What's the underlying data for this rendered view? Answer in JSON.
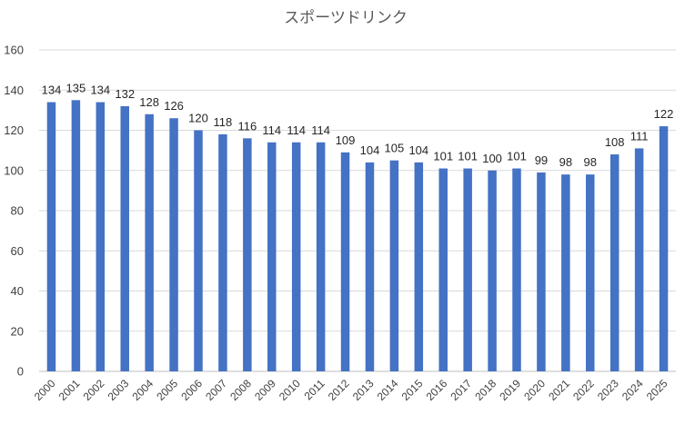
{
  "chart_data": {
    "type": "bar",
    "title": "スポーツドリンク",
    "xlabel": "",
    "ylabel": "",
    "ylim": [
      0,
      160
    ],
    "yticks": [
      0,
      20,
      40,
      60,
      80,
      100,
      120,
      140,
      160
    ],
    "grid": true,
    "legend": "none",
    "categories": [
      "2000",
      "2001",
      "2002",
      "2003",
      "2004",
      "2005",
      "2006",
      "2007",
      "2008",
      "2009",
      "2010",
      "2011",
      "2012",
      "2013",
      "2014",
      "2015",
      "2016",
      "2017",
      "2018",
      "2019",
      "2020",
      "2021",
      "2022",
      "2023",
      "2024",
      "2025"
    ],
    "values": [
      134,
      135,
      134,
      132,
      128,
      126,
      120,
      118,
      116,
      114,
      114,
      114,
      109,
      104,
      105,
      104,
      101,
      101,
      100,
      101,
      99,
      98,
      98,
      108,
      111,
      122
    ],
    "colors": {
      "bar": "#4472c4"
    }
  }
}
